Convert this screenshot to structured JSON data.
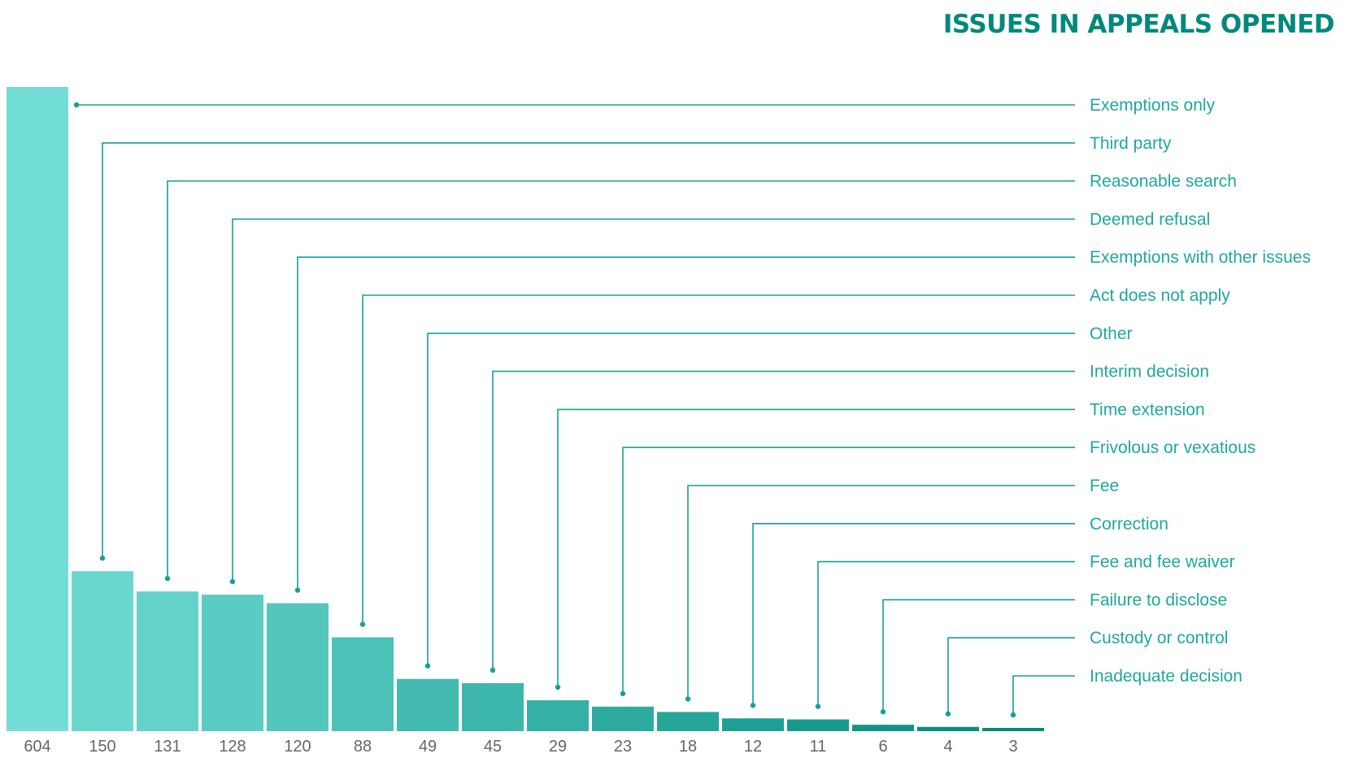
{
  "colors": {
    "title": "#00897b",
    "label": "#1fa89c",
    "leader": "#17a093",
    "tick": "#666666",
    "bar_light": "#72ddd5",
    "bar_dark": "#00897b"
  },
  "chart_data": {
    "type": "bar",
    "title": "ISSUES IN APPEALS OPENED",
    "xlabel": "",
    "ylabel": "",
    "ylim": [
      0,
      604
    ],
    "grid": false,
    "legend": "none",
    "categories": [
      "Exemptions only",
      "Third party",
      "Reasonable search",
      "Deemed refusal",
      "Exemptions with other issues",
      "Act does not apply",
      "Other",
      "Interim decision",
      "Time extension",
      "Frivolous or vexatious",
      "Fee",
      "Correction",
      "Fee and fee waiver",
      "Failure to disclose",
      "Custody or control",
      "Inadequate decision"
    ],
    "values": [
      604,
      150,
      131,
      128,
      120,
      88,
      49,
      45,
      29,
      23,
      18,
      12,
      11,
      6,
      4,
      3
    ],
    "tick_labels": [
      "604",
      "150",
      "131",
      "128",
      "120",
      "88",
      "49",
      "45",
      "29",
      "23",
      "18",
      "12",
      "11",
      "6",
      "4",
      "3"
    ]
  }
}
